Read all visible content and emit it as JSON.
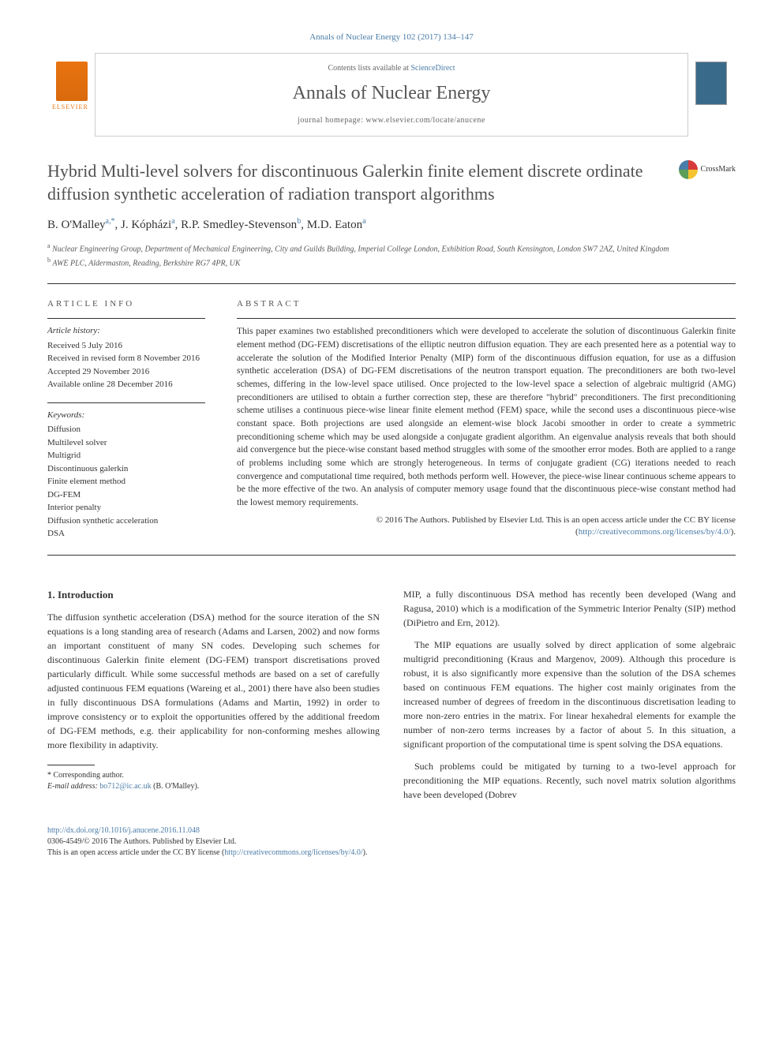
{
  "header": {
    "citation": "Annals of Nuclear Energy 102 (2017) 134–147",
    "contents_available": "Contents lists available at",
    "sciencedirect": "ScienceDirect",
    "journal_name": "Annals of Nuclear Energy",
    "homepage_label": "journal homepage:",
    "homepage_url": "www.elsevier.com/locate/anucene",
    "publisher_name": "ELSEVIER"
  },
  "article": {
    "title": "Hybrid Multi-level solvers for discontinuous Galerkin finite element discrete ordinate diffusion synthetic acceleration of radiation transport algorithms",
    "crossmark_label": "CrossMark"
  },
  "authors": {
    "list": "B. O'Malley",
    "a1_sup": "a,*",
    "a2": ", J. Kópházi",
    "a2_sup": "a",
    "a3": ", R.P. Smedley-Stevenson",
    "a3_sup": "b",
    "a4": ", M.D. Eaton",
    "a4_sup": "a"
  },
  "affiliations": {
    "a": "Nuclear Engineering Group, Department of Mechanical Engineering, City and Guilds Building, Imperial College London, Exhibition Road, South Kensington, London SW7 2AZ, United Kingdom",
    "b": "AWE PLC, Aldermaston, Reading, Berkshire RG7 4PR, UK"
  },
  "info": {
    "section_label": "article info",
    "history_label": "Article history:",
    "received": "Received 5 July 2016",
    "revised": "Received in revised form 8 November 2016",
    "accepted": "Accepted 29 November 2016",
    "online": "Available online 28 December 2016",
    "keywords_label": "Keywords:",
    "keywords": [
      "Diffusion",
      "Multilevel solver",
      "Multigrid",
      "Discontinuous galerkin",
      "Finite element method",
      "DG-FEM",
      "Interior penalty",
      "Diffusion synthetic acceleration",
      "DSA"
    ]
  },
  "abstract": {
    "label": "abstract",
    "text": "This paper examines two established preconditioners which were developed to accelerate the solution of discontinuous Galerkin finite element method (DG-FEM) discretisations of the elliptic neutron diffusion equation. They are each presented here as a potential way to accelerate the solution of the Modified Interior Penalty (MIP) form of the discontinuous diffusion equation, for use as a diffusion synthetic acceleration (DSA) of DG-FEM discretisations of the neutron transport equation. The preconditioners are both two-level schemes, differing in the low-level space utilised. Once projected to the low-level space a selection of algebraic multigrid (AMG) preconditioners are utilised to obtain a further correction step, these are therefore \"hybrid\" preconditioners. The first preconditioning scheme utilises a continuous piece-wise linear finite element method (FEM) space, while the second uses a discontinuous piece-wise constant space. Both projections are used alongside an element-wise block Jacobi smoother in order to create a symmetric preconditioning scheme which may be used alongside a conjugate gradient algorithm. An eigenvalue analysis reveals that both should aid convergence but the piece-wise constant based method struggles with some of the smoother error modes. Both are applied to a range of problems including some which are strongly heterogeneous. In terms of conjugate gradient (CG) iterations needed to reach convergence and computational time required, both methods perform well. However, the piece-wise linear continuous scheme appears to be the more effective of the two. An analysis of computer memory usage found that the discontinuous piece-wise constant method had the lowest memory requirements.",
    "copyright": "© 2016 The Authors. Published by Elsevier Ltd. This is an open access article under the CC BY license (",
    "license_url": "http://creativecommons.org/licenses/by/4.0/",
    "close_paren": ")."
  },
  "body": {
    "intro_heading": "1. Introduction",
    "left_p1": "The diffusion synthetic acceleration (DSA) method for the source iteration of the SN equations is a long standing area of research (Adams and Larsen, 2002) and now forms an important constituent of many SN codes. Developing such schemes for discontinuous Galerkin finite element (DG-FEM) transport discretisations proved particularly difficult. While some successful methods are based on a set of carefully adjusted continuous FEM equations (Wareing et al., 2001) there have also been studies in fully discontinuous DSA formulations (Adams and Martin, 1992) in order to improve consistency or to exploit the opportunities offered by the additional freedom of DG-FEM methods, e.g. their applicability for non-conforming meshes allowing more flexibility in adaptivity.",
    "right_p1": "MIP, a fully discontinuous DSA method has recently been developed (Wang and Ragusa, 2010) which is a modification of the Symmetric Interior Penalty (SIP) method (DiPietro and Ern, 2012).",
    "right_p2": "The MIP equations are usually solved by direct application of some algebraic multigrid preconditioning (Kraus and Margenov, 2009). Although this procedure is robust, it is also significantly more expensive than the solution of the DSA schemes based on continuous FEM equations. The higher cost mainly originates from the increased number of degrees of freedom in the discontinuous discretisation leading to more non-zero entries in the matrix. For linear hexahedral elements for example the number of non-zero terms increases by a factor of about 5. In this situation, a significant proportion of the computational time is spent solving the DSA equations.",
    "right_p3": "Such problems could be mitigated by turning to a two-level approach for preconditioning the MIP equations. Recently, such novel matrix solution algorithms have been developed (Dobrev"
  },
  "footnotes": {
    "corr_label": "* Corresponding author.",
    "email_label": "E-mail address:",
    "email": "bo712@ic.ac.uk",
    "email_name": "(B. O'Malley)."
  },
  "footer": {
    "doi": "http://dx.doi.org/10.1016/j.anucene.2016.11.048",
    "issn_line": "0306-4549/© 2016 The Authors. Published by Elsevier Ltd.",
    "license_line": "This is an open access article under the CC BY license (",
    "license_url": "http://creativecommons.org/licenses/by/4.0/",
    "close_paren": ")."
  },
  "colors": {
    "link": "#4a7ca8",
    "text": "#333333",
    "heading": "#505050",
    "elsevier_orange": "#e8730f",
    "border": "#cccccc"
  }
}
